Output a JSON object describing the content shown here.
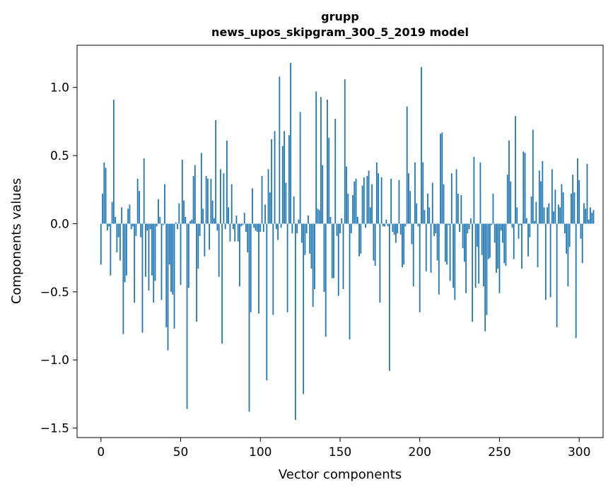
{
  "chart_data": {
    "type": "bar",
    "title_line1": "grupp",
    "title_line2": "news_upos_skipgram_300_5_2019 model",
    "xlabel": "Vector components",
    "ylabel": "Components values",
    "xlim": [
      -15,
      315
    ],
    "ylim": [
      -1.57,
      1.31
    ],
    "xticks": [
      0,
      50,
      100,
      150,
      200,
      250,
      300
    ],
    "xtick_labels": [
      "0",
      "50",
      "100",
      "150",
      "200",
      "250",
      "300"
    ],
    "yticks": [
      -1.5,
      -1.0,
      -0.5,
      0.0,
      0.5,
      1.0
    ],
    "ytick_labels": [
      "−1.5",
      "−1.0",
      "−0.5",
      "0.0",
      "0.5",
      "1.0"
    ],
    "bar_color": "#1f77b4",
    "grid": false,
    "values": [
      -0.3,
      0.22,
      0.45,
      0.41,
      -0.05,
      -0.02,
      -0.38,
      0.16,
      0.91,
      0.05,
      -0.21,
      -0.1,
      -0.27,
      0.12,
      -0.81,
      -0.43,
      -0.38,
      0.11,
      0.14,
      -0.04,
      -0.02,
      -0.58,
      -0.09,
      0.33,
      0.24,
      -0.1,
      -0.8,
      0.48,
      -0.39,
      -0.05,
      -0.49,
      -0.04,
      -0.38,
      -0.58,
      -0.42,
      -0.02,
      0.18,
      0.05,
      -0.56,
      -0.01,
      0.29,
      -0.76,
      -0.93,
      -0.3,
      -0.5,
      -0.52,
      -0.77,
      0.01,
      -0.04,
      0.15,
      -0.45,
      0.47,
      0.17,
      0.05,
      -1.36,
      -0.47,
      0.02,
      0.03,
      0.35,
      0.43,
      -0.72,
      -0.33,
      -0.09,
      0.52,
      0.11,
      -0.24,
      0.35,
      0.33,
      -0.19,
      0.33,
      0.17,
      0.04,
      0.76,
      -0.05,
      -0.39,
      0.4,
      -0.88,
      0.37,
      -0.04,
      0.61,
      0.12,
      -0.13,
      0.29,
      -0.04,
      -0.13,
      0.06,
      -0.13,
      -0.46,
      -0.02,
      -0.01,
      0.08,
      -0.06,
      -0.21,
      -1.38,
      -0.65,
      0.26,
      -0.03,
      -0.05,
      -0.06,
      -0.66,
      -0.06,
      0.35,
      -0.06,
      0.14,
      -1.15,
      0.4,
      0.23,
      0.62,
      -0.67,
      0.68,
      -0.04,
      -0.12,
      1.08,
      -0.03,
      0.57,
      0.68,
      0.3,
      -0.65,
      0.65,
      1.18,
      -0.07,
      0.2,
      -1.44,
      -0.07,
      0.03,
      0.82,
      -0.14,
      -1.25,
      -0.23,
      -0.07,
      0.06,
      -0.22,
      -0.33,
      -0.61,
      -0.48,
      0.97,
      0.11,
      0.1,
      0.93,
      0.43,
      -0.5,
      -0.83,
      0.91,
      0.63,
      0.05,
      -0.4,
      -0.4,
      0.77,
      -0.09,
      -0.53,
      -0.07,
      0.04,
      -0.48,
      1.06,
      0.42,
      0.22,
      -0.85,
      -0.07,
      0.21,
      0.31,
      0.33,
      0.05,
      -0.24,
      -0.22,
      0.28,
      0.34,
      -0.03,
      0.35,
      0.39,
      0.12,
      0.29,
      -0.27,
      -0.31,
      0.45,
      0.37,
      -0.58,
      0.34,
      -0.02,
      -0.02,
      0.03,
      -0.02,
      -1.08,
      0.33,
      -0.06,
      -0.08,
      -0.14,
      -0.07,
      0.32,
      -0.08,
      -0.32,
      -0.3,
      -0.02,
      0.86,
      0.37,
      0.24,
      -0.15,
      -0.46,
      0.45,
      0.15,
      -0.02,
      -0.65,
      1.15,
      0.45,
      0.1,
      -0.35,
      0.22,
      0.12,
      -0.36,
      0.3,
      -0.09,
      -0.07,
      -0.27,
      -0.52,
      0.66,
      0.67,
      0.29,
      -0.28,
      -0.3,
      -0.01,
      -0.42,
      0.37,
      -0.47,
      -0.56,
      0.4,
      0.22,
      -0.06,
      0.21,
      -0.18,
      -0.28,
      -0.51,
      -0.07,
      -0.04,
      0.04,
      -0.72,
      0.49,
      -0.47,
      -0.17,
      -0.44,
      0.45,
      -0.23,
      -0.46,
      -0.79,
      -0.67,
      -0.26,
      -0.25,
      -0.01,
      0.22,
      -0.14,
      -0.36,
      -0.33,
      -0.51,
      -0.05,
      -0.14,
      -0.29,
      -0.31,
      0.36,
      0.61,
      0.31,
      -0.03,
      -0.26,
      0.79,
      0.12,
      -0.11,
      -0.01,
      -0.33,
      0.53,
      0.52,
      0.04,
      -0.24,
      -0.1,
      0.2,
      0.69,
      0.02,
      0.16,
      -0.32,
      0.39,
      0.31,
      0.46,
      0.12,
      -0.56,
      0.12,
      0.15,
      -0.54,
      0.4,
      0.09,
      0.25,
      -0.76,
      0.14,
      0.12,
      0.29,
      0.23,
      -0.07,
      -0.22,
      -0.46,
      -0.17,
      0.22,
      0.36,
      0.23,
      -0.84,
      0.48,
      0.32,
      -0.11,
      -0.29,
      0.15,
      0.11,
      0.44,
      0.03,
      0.12,
      0.08,
      0.1
    ]
  }
}
